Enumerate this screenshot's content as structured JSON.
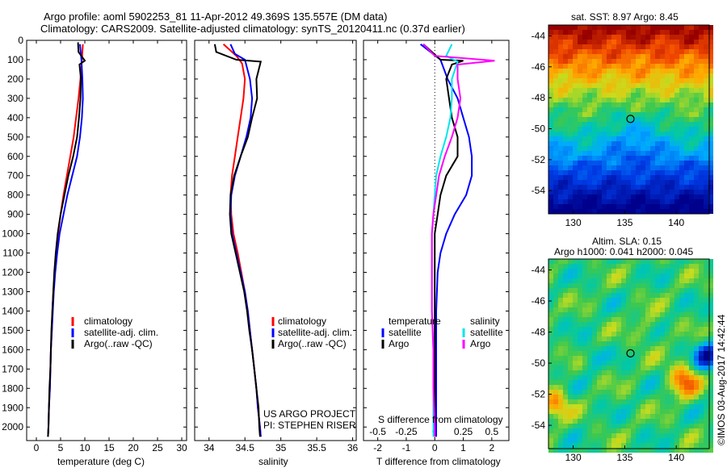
{
  "header": {
    "title_line1": "Argo profile: aoml 5902253_81 11-Apr-2012 49.369S 135.557E (DM data)",
    "title_line2": "Climatology: CARS2009. Satellite-adjusted climatology: synTS_20120411.nc (0.37d earlier)"
  },
  "colors": {
    "climatology": "#ff0000",
    "satellite": "#0000ff",
    "argo": "#000000",
    "argo_salinity": "#ff00ff",
    "sat_salinity": "#00e5ee"
  },
  "depth_axis": {
    "ticks": [
      0,
      100,
      200,
      300,
      400,
      500,
      600,
      700,
      800,
      900,
      1000,
      1100,
      1200,
      1300,
      1400,
      1500,
      1600,
      1700,
      1800,
      1900,
      2000
    ],
    "range": [
      0,
      2070
    ]
  },
  "temperature_panel": {
    "xlabel": "temperature (deg C)",
    "xticks": [
      "0",
      "5",
      "10",
      "15",
      "20",
      "25",
      "30"
    ],
    "xrange": [
      -2,
      31
    ],
    "legend": [
      "climatology",
      "satellite-adj. clim.",
      "Argo(..raw -QC)"
    ]
  },
  "salinity_panel": {
    "xlabel": "salinity",
    "xticks": [
      "34",
      "34.5",
      "35",
      "35.5",
      "36"
    ],
    "xrange": [
      33.8,
      36.05
    ],
    "legend": [
      "climatology",
      "satellite-adj. clim.",
      "Argo(..raw -QC)"
    ],
    "credit_line1": "US ARGO PROJECT",
    "credit_line2": "PI: STEPHEN RISER"
  },
  "difference_panel": {
    "top_xlabel": "S difference from climatology",
    "top_xticks": [
      "-0.5",
      "-0.25",
      "0",
      "0.25",
      "0.5"
    ],
    "xlabel": "T difference from climatology",
    "xticks": [
      "-2",
      "-1",
      "0",
      "1",
      "2"
    ],
    "xrange": [
      -2.5,
      2.6
    ],
    "legend_temp_title": "temperature",
    "legend_sal_title": "salinity",
    "legend_temp": [
      "satellite",
      "Argo"
    ],
    "legend_sal": [
      "satellite",
      "Argo"
    ]
  },
  "sst_map": {
    "title": "sat. SST: 8.97  Argo: 8.45",
    "yticks": [
      "-44",
      "-46",
      "-48",
      "-50",
      "-52",
      "-54"
    ],
    "xticks": [
      "130",
      "135",
      "140"
    ],
    "float_lat": -49.369,
    "float_lon": 135.557
  },
  "sla_map": {
    "title_line1": "Altim. SLA: 0.15",
    "title_line2": "Argo h1000: 0.041 h2000: 0.045",
    "yticks": [
      "-44",
      "-46",
      "-48",
      "-50",
      "-52",
      "-54"
    ],
    "xticks": [
      "130",
      "135",
      "140"
    ],
    "float_lat": -49.369,
    "float_lon": 135.557
  },
  "watermark": "©IMOS 03-Aug-2017 14:42:44",
  "chart_data": [
    {
      "type": "line",
      "name": "temperature profile",
      "xlabel": "temperature (deg C)",
      "ylabel": "",
      "xlim": [
        -2,
        31
      ],
      "ylim": [
        2070,
        0
      ],
      "series": [
        {
          "name": "climatology",
          "color": "#ff0000",
          "points": [
            [
              9.6,
              20
            ],
            [
              9.4,
              100
            ],
            [
              9.1,
              200
            ],
            [
              8.7,
              300
            ],
            [
              8.2,
              400
            ],
            [
              7.7,
              500
            ],
            [
              7.0,
              600
            ],
            [
              6.3,
              700
            ],
            [
              5.6,
              800
            ],
            [
              5.0,
              900
            ],
            [
              4.5,
              1000
            ],
            [
              4.1,
              1100
            ],
            [
              3.8,
              1200
            ],
            [
              3.5,
              1300
            ],
            [
              3.3,
              1400
            ],
            [
              3.2,
              1500
            ],
            [
              3.0,
              1600
            ],
            [
              2.9,
              1700
            ],
            [
              2.8,
              1800
            ],
            [
              2.6,
              1900
            ],
            [
              2.5,
              2000
            ],
            [
              2.4,
              2050
            ]
          ]
        },
        {
          "name": "satellite-adj. clim.",
          "color": "#0000ff",
          "points": [
            [
              9.0,
              20
            ],
            [
              9.3,
              100
            ],
            [
              9.5,
              200
            ],
            [
              9.6,
              300
            ],
            [
              9.4,
              400
            ],
            [
              9.0,
              500
            ],
            [
              8.4,
              600
            ],
            [
              7.4,
              700
            ],
            [
              6.4,
              800
            ],
            [
              5.6,
              900
            ],
            [
              4.8,
              1000
            ],
            [
              4.3,
              1100
            ],
            [
              3.9,
              1200
            ],
            [
              3.6,
              1300
            ],
            [
              3.4,
              1400
            ],
            [
              3.2,
              1500
            ],
            [
              3.0,
              1600
            ],
            [
              2.9,
              1700
            ],
            [
              2.8,
              1800
            ],
            [
              2.6,
              1900
            ],
            [
              2.5,
              2000
            ],
            [
              2.4,
              2050
            ]
          ]
        },
        {
          "name": "Argo(..raw -QC)",
          "color": "#000000",
          "points": [
            [
              8.6,
              10
            ],
            [
              8.7,
              60
            ],
            [
              10.0,
              105
            ],
            [
              8.9,
              125
            ],
            [
              9.2,
              200
            ],
            [
              9.1,
              300
            ],
            [
              8.8,
              400
            ],
            [
              8.4,
              500
            ],
            [
              7.6,
              600
            ],
            [
              6.6,
              700
            ],
            [
              5.8,
              800
            ],
            [
              5.0,
              900
            ],
            [
              4.4,
              1000
            ],
            [
              4.0,
              1100
            ],
            [
              3.7,
              1200
            ],
            [
              3.5,
              1300
            ],
            [
              3.3,
              1400
            ],
            [
              3.1,
              1500
            ],
            [
              3.0,
              1600
            ],
            [
              2.9,
              1700
            ],
            [
              2.7,
              1800
            ],
            [
              2.6,
              1900
            ],
            [
              2.5,
              2000
            ],
            [
              2.4,
              2050
            ]
          ]
        }
      ]
    },
    {
      "type": "line",
      "name": "salinity profile",
      "xlabel": "salinity",
      "ylabel": "",
      "xlim": [
        33.8,
        36.05
      ],
      "ylim": [
        2070,
        0
      ],
      "series": [
        {
          "name": "climatology",
          "color": "#ff0000",
          "points": [
            [
              34.2,
              20
            ],
            [
              34.38,
              80
            ],
            [
              34.46,
              120
            ],
            [
              34.5,
              200
            ],
            [
              34.48,
              300
            ],
            [
              34.44,
              400
            ],
            [
              34.4,
              500
            ],
            [
              34.36,
              600
            ],
            [
              34.32,
              700
            ],
            [
              34.3,
              800
            ],
            [
              34.31,
              900
            ],
            [
              34.34,
              1000
            ],
            [
              34.4,
              1100
            ],
            [
              34.45,
              1200
            ],
            [
              34.5,
              1300
            ],
            [
              34.54,
              1400
            ],
            [
              34.57,
              1500
            ],
            [
              34.6,
              1600
            ],
            [
              34.63,
              1700
            ],
            [
              34.66,
              1800
            ],
            [
              34.68,
              1900
            ],
            [
              34.71,
              2000
            ],
            [
              34.72,
              2050
            ]
          ]
        },
        {
          "name": "satellite-adj. clim.",
          "color": "#0000ff",
          "points": [
            [
              34.3,
              20
            ],
            [
              34.36,
              70
            ],
            [
              34.5,
              100
            ],
            [
              34.57,
              200
            ],
            [
              34.6,
              300
            ],
            [
              34.58,
              400
            ],
            [
              34.52,
              500
            ],
            [
              34.44,
              600
            ],
            [
              34.36,
              700
            ],
            [
              34.31,
              800
            ],
            [
              34.3,
              900
            ],
            [
              34.32,
              1000
            ],
            [
              34.38,
              1100
            ],
            [
              34.44,
              1200
            ],
            [
              34.5,
              1300
            ],
            [
              34.54,
              1400
            ],
            [
              34.57,
              1500
            ],
            [
              34.6,
              1600
            ],
            [
              34.63,
              1700
            ],
            [
              34.66,
              1800
            ],
            [
              34.68,
              1900
            ],
            [
              34.71,
              2000
            ],
            [
              34.72,
              2050
            ]
          ]
        },
        {
          "name": "Argo(..raw -QC)",
          "color": "#000000",
          "points": [
            [
              34.08,
              20
            ],
            [
              34.1,
              60
            ],
            [
              34.38,
              100
            ],
            [
              34.72,
              110
            ],
            [
              34.66,
              200
            ],
            [
              34.67,
              300
            ],
            [
              34.6,
              400
            ],
            [
              34.54,
              500
            ],
            [
              34.44,
              600
            ],
            [
              34.35,
              700
            ],
            [
              34.3,
              800
            ],
            [
              34.29,
              900
            ],
            [
              34.31,
              1000
            ],
            [
              34.37,
              1100
            ],
            [
              34.43,
              1200
            ],
            [
              34.49,
              1300
            ],
            [
              34.53,
              1400
            ],
            [
              34.56,
              1500
            ],
            [
              34.6,
              1600
            ],
            [
              34.63,
              1700
            ],
            [
              34.66,
              1800
            ],
            [
              34.69,
              1900
            ],
            [
              34.7,
              2000
            ],
            [
              34.71,
              2050
            ]
          ]
        }
      ]
    },
    {
      "type": "line",
      "name": "difference profile",
      "xlabel": "T difference from climatology",
      "ylabel": "",
      "xlim": [
        -2.5,
        2.6
      ],
      "ylim": [
        2070,
        0
      ],
      "series": [
        {
          "name": "temperature satellite",
          "color": "#0000ff",
          "points": [
            [
              -0.5,
              20
            ],
            [
              0.2,
              100
            ],
            [
              0.45,
              200
            ],
            [
              0.8,
              300
            ],
            [
              1.0,
              400
            ],
            [
              1.2,
              500
            ],
            [
              1.3,
              600
            ],
            [
              1.3,
              700
            ],
            [
              1.1,
              800
            ],
            [
              0.7,
              900
            ],
            [
              0.4,
              1000
            ],
            [
              0.2,
              1100
            ],
            [
              0.1,
              1200
            ],
            [
              0.05,
              1400
            ],
            [
              0.05,
              1600
            ],
            [
              0.05,
              1800
            ],
            [
              0.05,
              2000
            ],
            [
              0.05,
              2050
            ]
          ]
        },
        {
          "name": "temperature Argo",
          "color": "#000000",
          "points": [
            [
              -0.4,
              20
            ],
            [
              0.2,
              100
            ],
            [
              1.0,
              105
            ],
            [
              0.6,
              125
            ],
            [
              0.4,
              200
            ],
            [
              0.5,
              300
            ],
            [
              0.6,
              400
            ],
            [
              0.8,
              500
            ],
            [
              0.8,
              600
            ],
            [
              0.4,
              700
            ],
            [
              0.2,
              800
            ],
            [
              0.1,
              900
            ],
            [
              0.0,
              1000
            ],
            [
              0.0,
              1200
            ],
            [
              0.0,
              1400
            ],
            [
              0.0,
              1600
            ],
            [
              0.0,
              1800
            ],
            [
              0.0,
              2000
            ],
            [
              0.0,
              2050
            ]
          ]
        },
        {
          "name": "salinity satellite",
          "color": "#00e5ee",
          "points": [
            [
              0.6,
              20
            ],
            [
              0.4,
              80
            ],
            [
              0.8,
              110
            ],
            [
              0.6,
              200
            ],
            [
              0.6,
              300
            ],
            [
              0.55,
              400
            ],
            [
              0.4,
              500
            ],
            [
              0.2,
              600
            ],
            [
              0.05,
              700
            ],
            [
              0.0,
              800
            ],
            [
              -0.05,
              900
            ],
            [
              -0.1,
              1000
            ],
            [
              -0.1,
              1200
            ],
            [
              -0.1,
              1400
            ],
            [
              -0.05,
              1600
            ],
            [
              -0.05,
              1800
            ],
            [
              -0.05,
              2000
            ],
            [
              -0.05,
              2050
            ]
          ]
        },
        {
          "name": "salinity Argo",
          "color": "#ff00ff",
          "points": [
            [
              -0.4,
              20
            ],
            [
              0.0,
              80
            ],
            [
              2.1,
              105
            ],
            [
              0.8,
              125
            ],
            [
              0.8,
              200
            ],
            [
              0.9,
              300
            ],
            [
              0.8,
              400
            ],
            [
              0.6,
              500
            ],
            [
              0.35,
              600
            ],
            [
              0.15,
              700
            ],
            [
              0.05,
              800
            ],
            [
              -0.05,
              900
            ],
            [
              -0.1,
              1000
            ],
            [
              -0.1,
              1200
            ],
            [
              -0.1,
              1400
            ],
            [
              -0.05,
              1600
            ],
            [
              -0.05,
              1800
            ],
            [
              0.0,
              2000
            ],
            [
              0.0,
              2050
            ]
          ]
        }
      ]
    }
  ]
}
